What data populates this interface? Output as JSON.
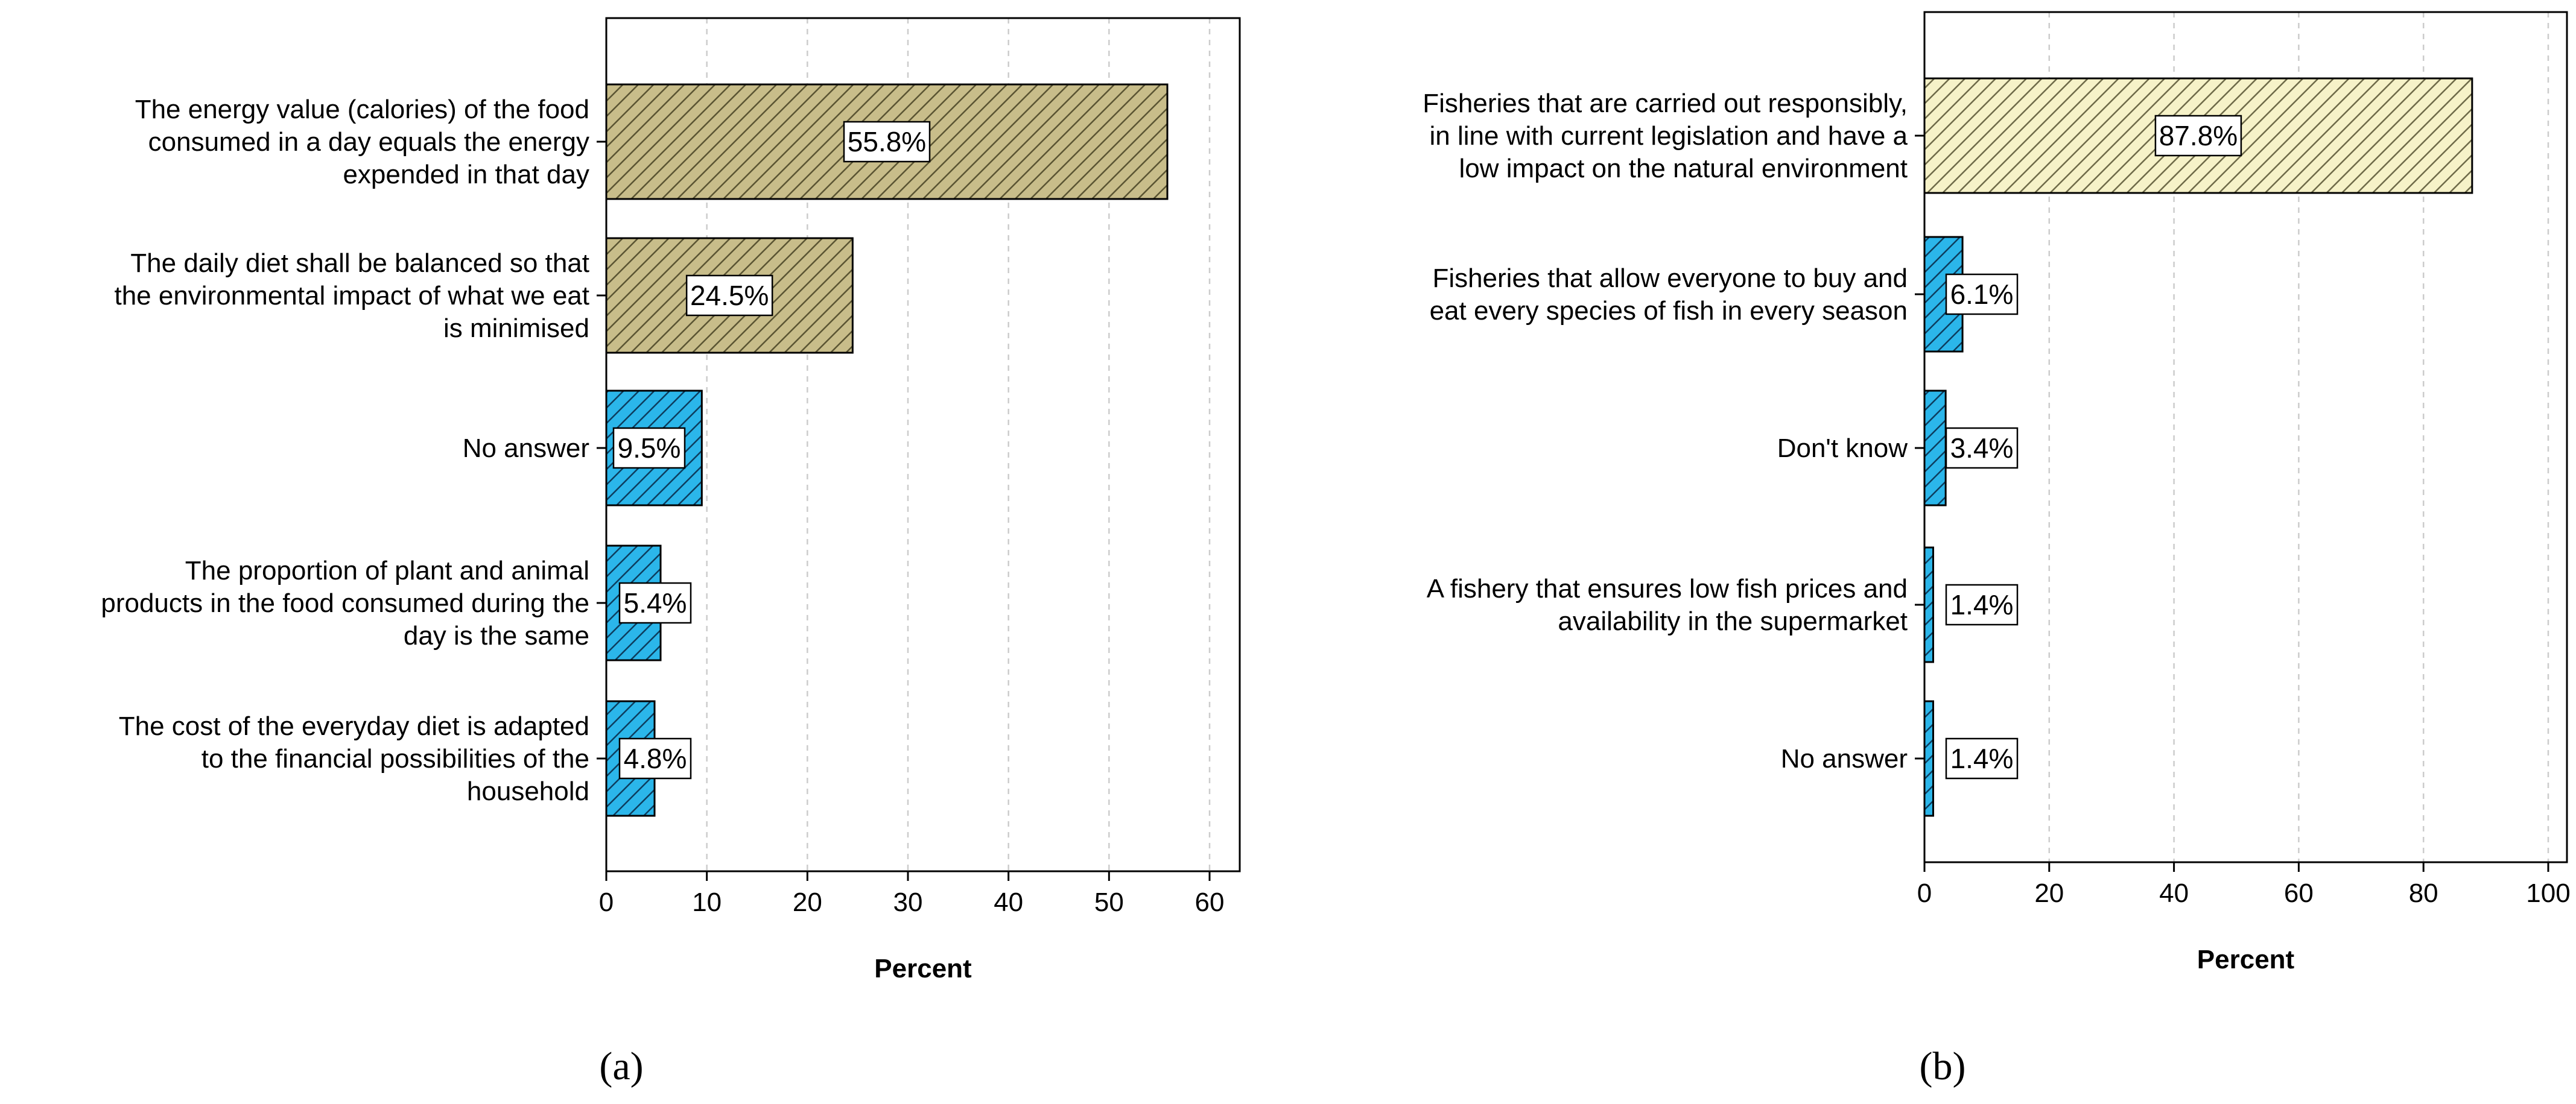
{
  "colors": {
    "tan_fill": "#c8bd8a",
    "tan_hatch": "#5a5432",
    "pale_fill": "#f6f2c8",
    "pale_hatch": "#6e6a48",
    "blue_fill": "#2bb6ea",
    "blue_hatch": "#0d3d5e",
    "gridline": "#cccccc",
    "frame": "#000000"
  },
  "chart_data": [
    {
      "type": "bar",
      "orientation": "horizontal",
      "panel_label": "(a)",
      "xlabel": "Percent",
      "xlim": [
        0,
        63
      ],
      "xticks": [
        0,
        10,
        20,
        30,
        40,
        50,
        60
      ],
      "grid": true,
      "categories": [
        "The energy value (calories) of the food consumed in a day equals the energy expended in that day",
        "The daily diet shall be balanced so that the environmental impact of what we eat is minimised",
        "No answer",
        "The proportion of plant and animal products in the food consumed during the day is the same",
        "The cost of the everyday diet is adapted to the financial possibilities of the household"
      ],
      "category_lines": [
        [
          "The energy value (calories) of the food",
          "consumed in a day equals the energy",
          "expended in that day"
        ],
        [
          "The daily diet shall be balanced so that",
          "the environmental impact of what we eat",
          "is minimised"
        ],
        [
          "No answer"
        ],
        [
          "The proportion of plant and animal",
          "products in the food consumed during the",
          "day is the same"
        ],
        [
          "The cost of the everyday diet is adapted",
          "to the financial possibilities of the",
          "household"
        ]
      ],
      "values": [
        55.8,
        24.5,
        9.5,
        5.4,
        4.8
      ],
      "value_labels": [
        "55.8%",
        "24.5%",
        "9.5%",
        "5.4%",
        "4.8%"
      ],
      "bar_colors": [
        "tan",
        "tan",
        "blue",
        "blue",
        "blue"
      ]
    },
    {
      "type": "bar",
      "orientation": "horizontal",
      "panel_label": "(b)",
      "xlabel": "Percent",
      "xlim": [
        0,
        103
      ],
      "xticks": [
        0,
        20,
        40,
        60,
        80,
        100
      ],
      "grid": true,
      "categories": [
        "Fisheries that are carried out responsibly, in line with current legislation and have a low impact on the natural environment",
        "Fisheries that allow everyone to buy and eat every species of fish in every season",
        "Don't know",
        "A fishery that ensures low fish prices and availability in the supermarket",
        "No answer"
      ],
      "category_lines": [
        [
          "Fisheries that are carried out responsibly,",
          "in line with current legislation and have a",
          "low impact on the natural environment"
        ],
        [
          "Fisheries that allow everyone to buy and",
          "eat every species of fish in every season"
        ],
        [
          "Don't know"
        ],
        [
          "A fishery that ensures low fish prices and",
          "availability in the supermarket"
        ],
        [
          "No answer"
        ]
      ],
      "values": [
        87.8,
        6.1,
        3.4,
        1.4,
        1.4
      ],
      "value_labels": [
        "87.8%",
        "6.1%",
        "3.4%",
        "1.4%",
        "1.4%"
      ],
      "bar_colors": [
        "pale",
        "blue",
        "blue",
        "blue",
        "blue"
      ]
    }
  ]
}
